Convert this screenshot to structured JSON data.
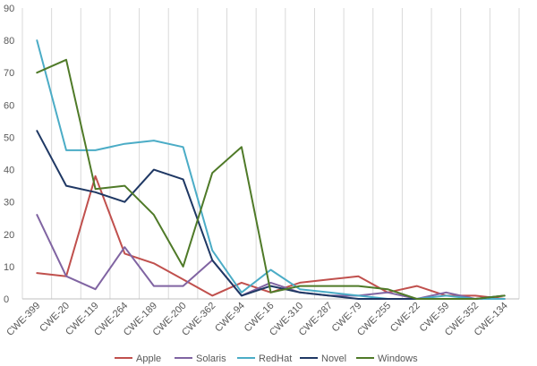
{
  "chart_data": {
    "type": "line",
    "title": "",
    "xlabel": "",
    "ylabel": "",
    "ylim": [
      0,
      90
    ],
    "yticks": [
      0,
      10,
      20,
      30,
      40,
      50,
      60,
      70,
      80,
      90
    ],
    "grid": "vertical-lines",
    "legend_position": "bottom",
    "categories": [
      "CWE-399",
      "CWE-20",
      "CWE-119",
      "CWE-264",
      "CWE-189",
      "CWE-200",
      "CWE-362",
      "CWE-94",
      "CWE-16",
      "CWE-310",
      "CWE-287",
      "CWE-79",
      "CWE-255",
      "CWE-22",
      "CWE-59",
      "CWE-352",
      "CWE-134"
    ],
    "series": [
      {
        "name": "Apple",
        "color": "#c0504d",
        "values": [
          8,
          7,
          38,
          14,
          11,
          6,
          1,
          5,
          2,
          5,
          6,
          7,
          2,
          4,
          1,
          1,
          0
        ]
      },
      {
        "name": "Solaris",
        "color": "#8064a2",
        "values": [
          26,
          7,
          3,
          16,
          4,
          4,
          12,
          1,
          5,
          2,
          1,
          1,
          2,
          0,
          2,
          0,
          0
        ]
      },
      {
        "name": "RedHat",
        "color": "#4bacc6",
        "values": [
          80,
          46,
          46,
          48,
          49,
          47,
          15,
          2,
          9,
          3,
          2,
          1,
          0,
          0,
          1,
          0,
          0
        ]
      },
      {
        "name": "Novel",
        "color": "#1f3864",
        "values": [
          52,
          35,
          33,
          30,
          40,
          37,
          12,
          1,
          4,
          2,
          1,
          0,
          0,
          0,
          0,
          0,
          1
        ]
      },
      {
        "name": "Windows",
        "color": "#4f7a28",
        "values": [
          70,
          74,
          34,
          35,
          26,
          10,
          39,
          47,
          2,
          4,
          4,
          4,
          3,
          0,
          0,
          0,
          1
        ]
      }
    ]
  }
}
